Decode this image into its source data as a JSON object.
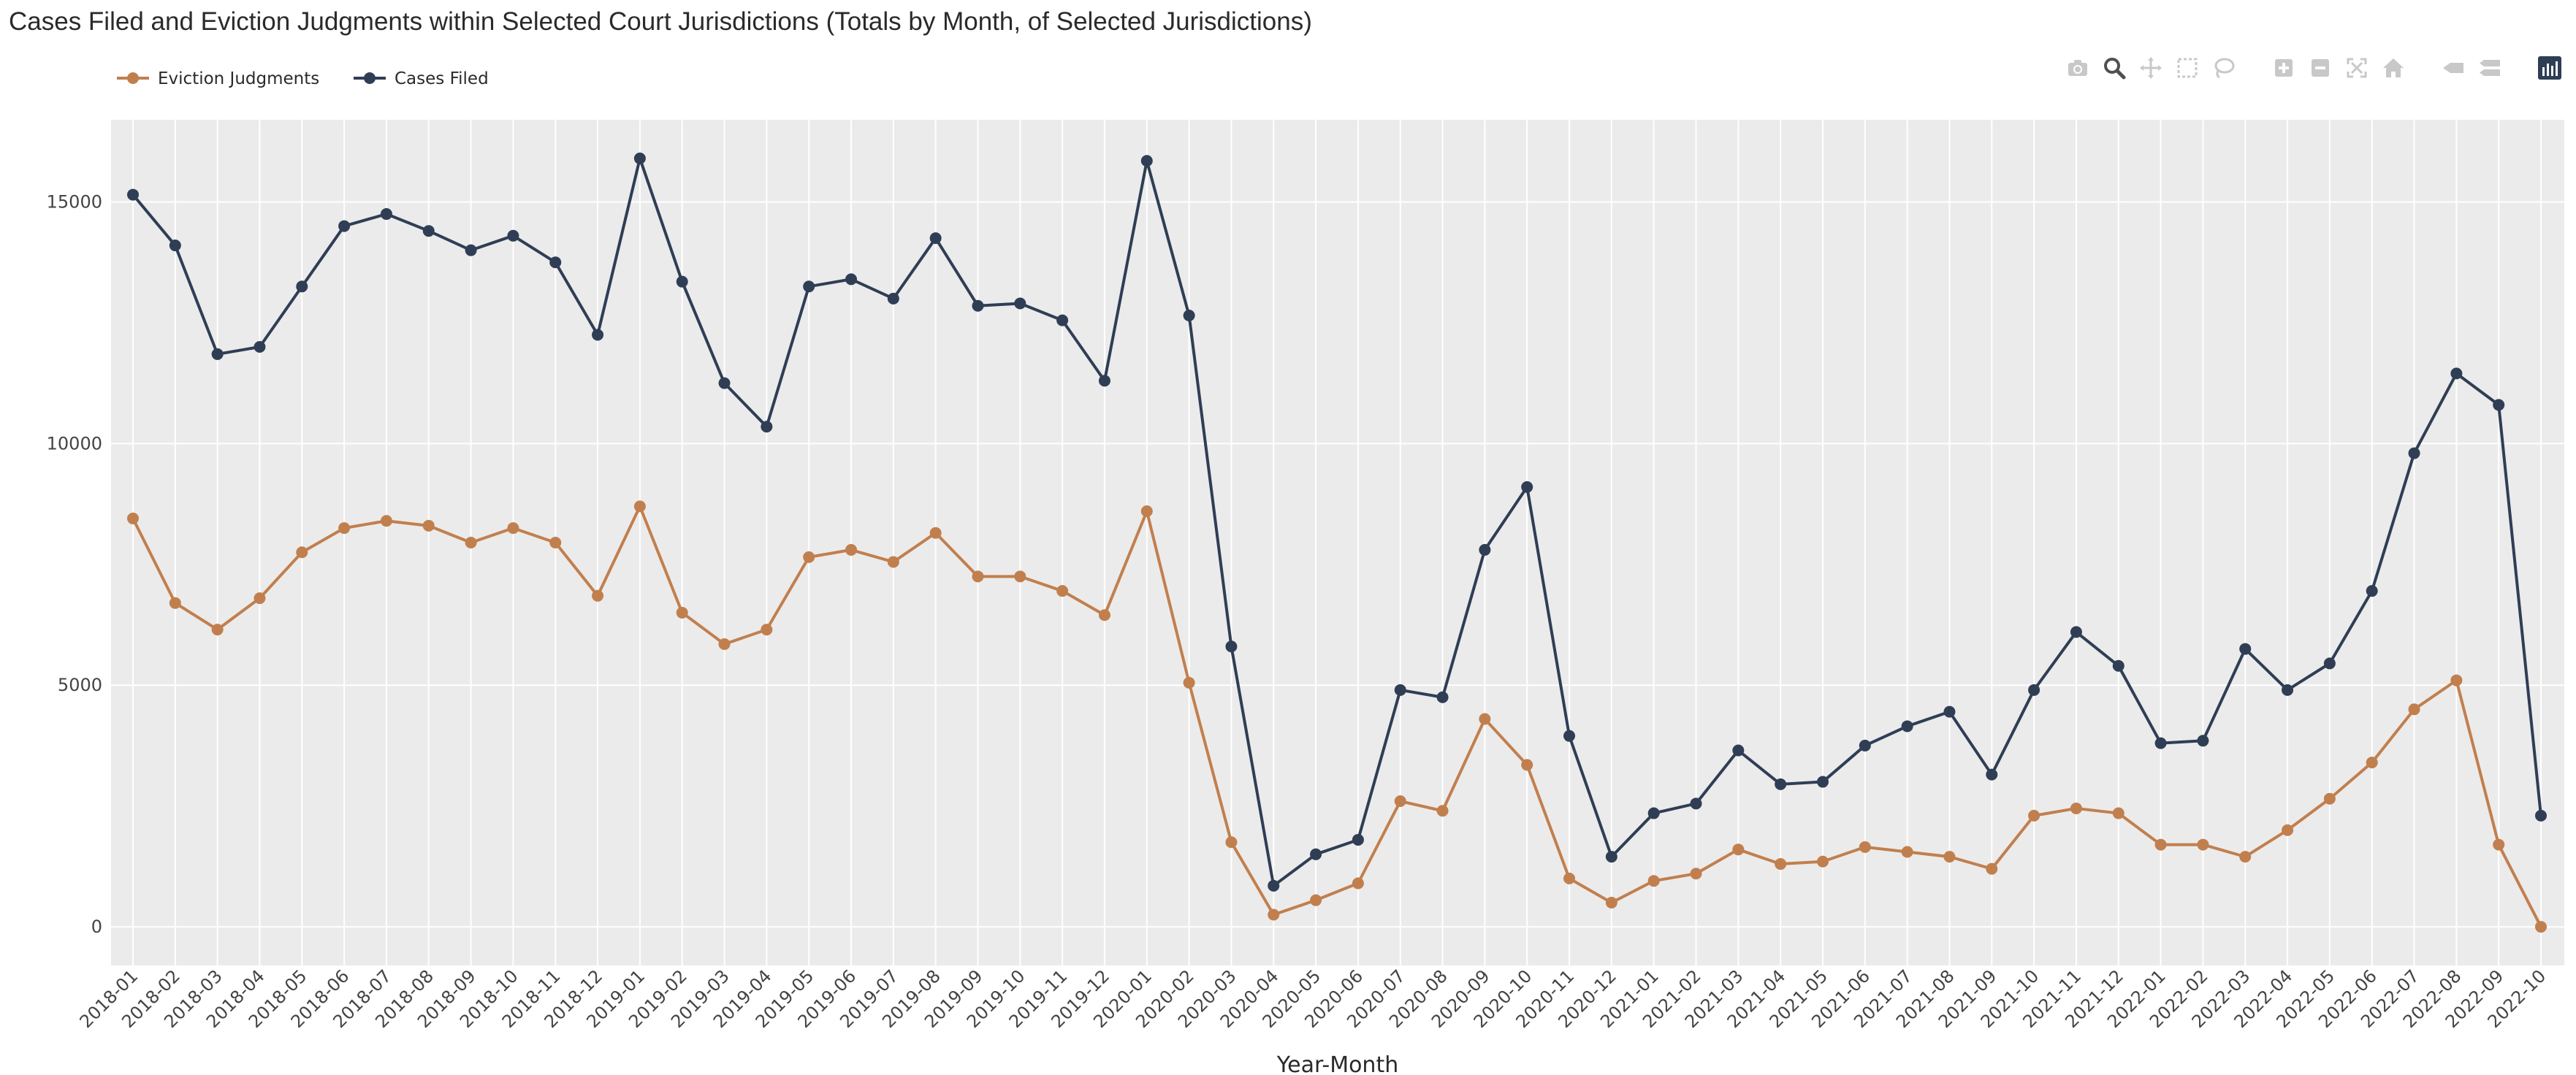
{
  "title": "Cases Filed and Eviction Judgments within Selected Court Jurisdictions (Totals by Month, of Selected Jurisdictions)",
  "colors": {
    "eviction": "#c17f4e",
    "cases": "#2f3e55",
    "plot_bg": "#ebebeb",
    "grid": "#ffffff",
    "modebar_icon": "#c8c8c8",
    "modebar_active": "#505050",
    "modebar_brand": "#2f3e55"
  },
  "modebar": [
    {
      "name": "camera-icon"
    },
    {
      "name": "zoom-icon",
      "active": true
    },
    {
      "name": "pan-icon"
    },
    {
      "name": "box-select-icon"
    },
    {
      "name": "lasso-select-icon"
    },
    {
      "name": "zoom-in-icon"
    },
    {
      "name": "zoom-out-icon"
    },
    {
      "name": "autoscale-icon"
    },
    {
      "name": "reset-axes-icon"
    },
    {
      "name": "spike-lines-icon"
    },
    {
      "name": "compare-hover-icon"
    },
    {
      "name": "plotly-logo-icon"
    }
  ],
  "chart_data": {
    "type": "line",
    "title": "Cases Filed and Eviction Judgments within Selected Court Jurisdictions (Totals by Month, of Selected Jurisdictions)",
    "xlabel": "Year-Month",
    "ylabel": "",
    "ylim": [
      -800,
      16700
    ],
    "yticks": [
      0,
      5000,
      10000,
      15000
    ],
    "grid": true,
    "legend_position": "top-left",
    "categories": [
      "2018-01",
      "2018-02",
      "2018-03",
      "2018-04",
      "2018-05",
      "2018-06",
      "2018-07",
      "2018-08",
      "2018-09",
      "2018-10",
      "2018-11",
      "2018-12",
      "2019-01",
      "2019-02",
      "2019-03",
      "2019-04",
      "2019-05",
      "2019-06",
      "2019-07",
      "2019-08",
      "2019-09",
      "2019-10",
      "2019-11",
      "2019-12",
      "2020-01",
      "2020-02",
      "2020-03",
      "2020-04",
      "2020-05",
      "2020-06",
      "2020-07",
      "2020-08",
      "2020-09",
      "2020-10",
      "2020-11",
      "2020-12",
      "2021-01",
      "2021-02",
      "2021-03",
      "2021-04",
      "2021-05",
      "2021-06",
      "2021-07",
      "2021-08",
      "2021-09",
      "2021-10",
      "2021-11",
      "2021-12",
      "2022-01",
      "2022-02",
      "2022-03",
      "2022-04",
      "2022-05",
      "2022-06",
      "2022-07",
      "2022-08",
      "2022-09",
      "2022-10"
    ],
    "series": [
      {
        "name": "Eviction Judgments",
        "color": "#c17f4e",
        "values": [
          8450,
          6700,
          6150,
          6800,
          7750,
          8250,
          8400,
          8300,
          7950,
          8250,
          7950,
          6850,
          8700,
          6500,
          5850,
          6150,
          7650,
          7800,
          7550,
          8150,
          7250,
          7250,
          6950,
          6450,
          8600,
          5050,
          1750,
          250,
          550,
          900,
          2600,
          2400,
          4300,
          3350,
          1000,
          500,
          950,
          1100,
          1600,
          1300,
          1350,
          1650,
          1550,
          1450,
          1200,
          2300,
          2450,
          2350,
          1700,
          1700,
          1450,
          2000,
          2650,
          3400,
          4500,
          5100,
          1700,
          0
        ]
      },
      {
        "name": "Cases Filed",
        "color": "#2f3e55",
        "values": [
          15150,
          14100,
          11850,
          12000,
          13250,
          14500,
          14750,
          14400,
          14000,
          14300,
          13750,
          12250,
          15900,
          13350,
          11250,
          10350,
          13250,
          13400,
          13000,
          14250,
          12850,
          12900,
          12550,
          11300,
          15850,
          12650,
          5800,
          850,
          1500,
          1800,
          4900,
          4750,
          7800,
          9100,
          3950,
          1450,
          2350,
          2550,
          3650,
          2950,
          3000,
          3750,
          4150,
          4450,
          3150,
          4900,
          6100,
          5400,
          3800,
          3850,
          5750,
          4900,
          5450,
          6950,
          9800,
          11450,
          10800,
          2300
        ]
      }
    ]
  }
}
